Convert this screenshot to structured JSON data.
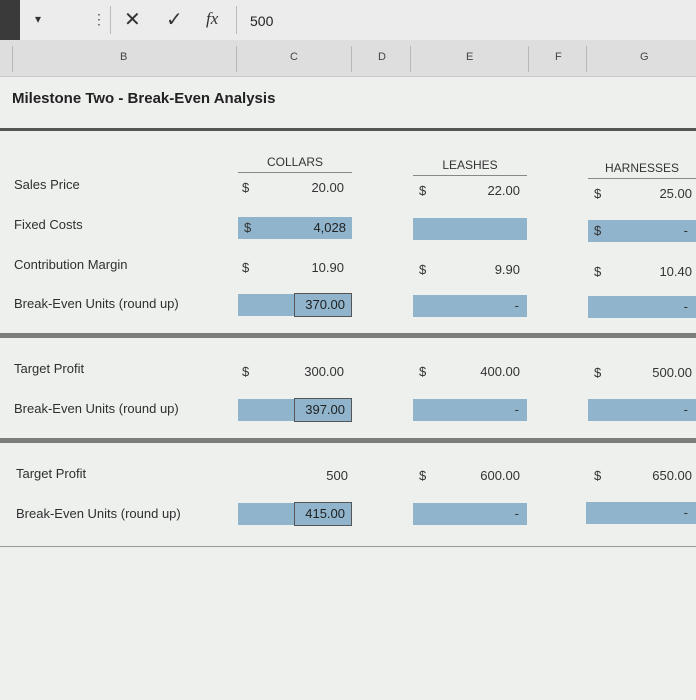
{
  "formula_bar": {
    "dropdown_glyph": "▾",
    "dots_glyph": "⋮",
    "cancel_glyph": "✕",
    "enter_glyph": "✓",
    "fx_label": "fx",
    "value": "500"
  },
  "columns": [
    "B",
    "C",
    "D",
    "E",
    "F",
    "G"
  ],
  "title": "Milestone Two - Break-Even Analysis",
  "headers": {
    "collars": "COLLARS",
    "leashes": "LEASHES",
    "harnesses": "HARNESSES"
  },
  "currency": "$",
  "dash": "-",
  "rows": {
    "sales_price": {
      "label": "Sales Price",
      "collars": "20.00",
      "leashes": "22.00",
      "harnesses": "25.00"
    },
    "fixed_costs": {
      "label": "Fixed Costs",
      "collars": "4,028"
    },
    "contribution_margin": {
      "label": "Contribution Margin",
      "collars": "10.90",
      "leashes": "9.90",
      "harnesses": "10.40"
    },
    "break_even_1": {
      "label": "Break-Even Units (round up)",
      "collars": "370.00"
    },
    "target_profit_1": {
      "label": "Target Profit",
      "collars": "300.00",
      "leashes": "400.00",
      "harnesses": "500.00"
    },
    "break_even_2": {
      "label": "Break-Even Units (round up)",
      "collars": "397.00"
    },
    "target_profit_2": {
      "label": "Target Profit",
      "collars": "500",
      "leashes": "600.00",
      "harnesses": "650.00"
    },
    "break_even_3": {
      "label": "Break-Even Units (round up)",
      "collars": "415.00"
    }
  },
  "colors": {
    "input_cell": "#8fb4cc",
    "rule": "#555555"
  }
}
